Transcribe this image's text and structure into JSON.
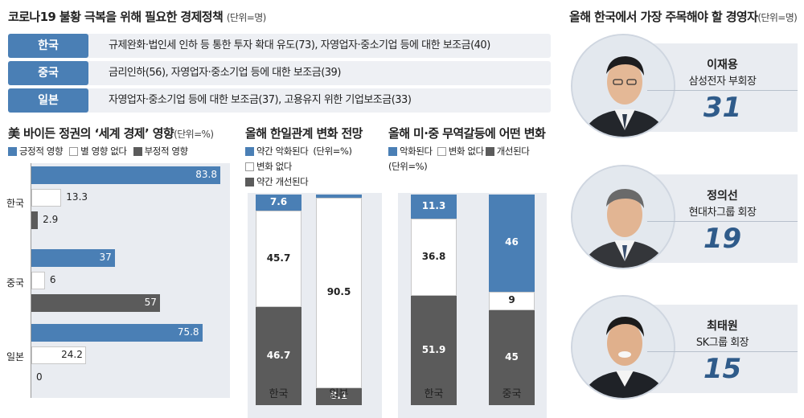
{
  "policy": {
    "title": "코로나19 불황 극복을 위해 필요한 경제정책",
    "unit": "(단위=명)",
    "rows": [
      {
        "country": "한국",
        "text": "규제완화·법인세 인하 등 통한 투자 확대 유도(73), 자영업자·중소기업 등에 대한 보조금(40)"
      },
      {
        "country": "중국",
        "text": "금리인하(56), 자영업자·중소기업 등에 대한 보조금(39)"
      },
      {
        "country": "일본",
        "text": "자영업자·중소기업 등에 대한 보조금(37), 고용유지 위한 기업보조금(33)"
      }
    ]
  },
  "ceo": {
    "title": "올해 한국에서 가장 주목해야 할 경영자",
    "unit": "(단위=명)",
    "people": [
      {
        "name": "이재용",
        "role": "삼성전자 부회장",
        "count": "31"
      },
      {
        "name": "정의선",
        "role": "현대차그룹 회장",
        "count": "19"
      },
      {
        "name": "최태원",
        "role": "SK그룹 회장",
        "count": "15"
      }
    ]
  },
  "colors": {
    "blue": "#4a7fb5",
    "gray": "#5b5b5b",
    "white": "#ffffff",
    "panel": "#e9ecf1"
  },
  "chart_data": [
    {
      "type": "bar",
      "title": "美 바이든 정권의 ‘세계 경제’ 영향",
      "unit": "(단위=%)",
      "categories": [
        "한국",
        "중국",
        "일본"
      ],
      "series": [
        {
          "name": "긍정적 영향",
          "values": [
            83.8,
            37,
            75.8
          ],
          "labels": [
            "83.8",
            "37",
            "75.8"
          ]
        },
        {
          "name": "별 영향 없다",
          "values": [
            13.3,
            6,
            24.2
          ],
          "labels": [
            "13.3",
            "6",
            "24.2"
          ]
        },
        {
          "name": "부정적 영향",
          "values": [
            2.9,
            57,
            0
          ],
          "labels": [
            "2.9",
            "57",
            "0"
          ]
        }
      ]
    },
    {
      "type": "bar",
      "stacked": true,
      "title": "올해 한일관계 변화 전망",
      "unit": "(단위=%)",
      "categories": [
        "한국",
        "일본"
      ],
      "series": [
        {
          "name": "약간 악화된다",
          "values": [
            7.6,
            1.4
          ],
          "labels": [
            "7.6",
            "1.4"
          ]
        },
        {
          "name": "변화 없다",
          "values": [
            45.7,
            90.5
          ],
          "labels": [
            "45.7",
            "90.5"
          ]
        },
        {
          "name": "약간 개선된다",
          "values": [
            46.7,
            8.1
          ],
          "labels": [
            "46.7",
            "8.1"
          ]
        }
      ]
    },
    {
      "type": "bar",
      "stacked": true,
      "title": "올해 미·중 무역갈등에 어떤 변화",
      "unit": "(단위=%)",
      "categories": [
        "한국",
        "중국"
      ],
      "series": [
        {
          "name": "악화된다",
          "values": [
            11.3,
            46
          ],
          "labels": [
            "11.3",
            "46"
          ]
        },
        {
          "name": "변화 없다",
          "values": [
            36.8,
            9
          ],
          "labels": [
            "36.8",
            "9"
          ]
        },
        {
          "name": "개선된다",
          "values": [
            51.9,
            45
          ],
          "labels": [
            "51.9",
            "45"
          ]
        }
      ]
    }
  ]
}
